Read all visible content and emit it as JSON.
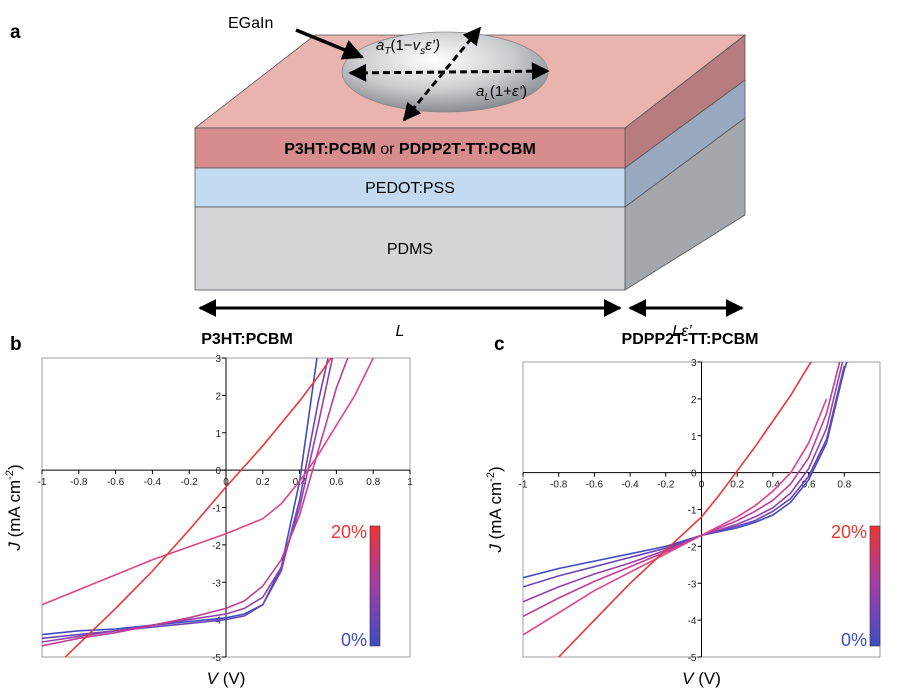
{
  "panel_labels": [
    "a",
    "b",
    "c"
  ],
  "diagram": {
    "droplet_label": "EGaIn",
    "width_label": [
      "a",
      "T",
      "(1−",
      "v",
      "s",
      "ε’)"
    ],
    "length_label": [
      "a",
      "L",
      "(1+",
      "ε’",
      ")"
    ],
    "layers": [
      [
        "P3HT:PCBM",
        " or ",
        "PDPP2T-TT:PCBM"
      ],
      "PEDOT:PSS",
      "PDMS"
    ],
    "length_marks": [
      "L",
      "Lε’"
    ]
  },
  "chart_data": [
    {
      "type": "line",
      "title": "P3HT:PCBM",
      "xlabel": [
        "V",
        " (V)"
      ],
      "ylabel": [
        "J",
        " (mA cm",
        "-2",
        ")"
      ],
      "x": [
        -1,
        -0.8,
        -0.6,
        -0.4,
        -0.2,
        0,
        0.1,
        0.2,
        0.3,
        0.4,
        0.5,
        0.6,
        0.7,
        0.8
      ],
      "xlim": [
        -1,
        1
      ],
      "xticks": [
        -1,
        -0.8,
        -0.6,
        -0.4,
        -0.2,
        0,
        0.2,
        0.4,
        0.6,
        0.8,
        1
      ],
      "ylim": [
        -5,
        3
      ],
      "yticks": [
        -5,
        -4,
        -3,
        -2,
        -1,
        0,
        1,
        2,
        3
      ],
      "series": [
        {
          "color": "#3d4cc0",
          "values": [
            -4.4,
            -4.3,
            -4.25,
            -4.15,
            -4.05,
            -3.95,
            -3.85,
            -3.6,
            -2.6,
            -0.3,
            3.2,
            null,
            null,
            null
          ]
        },
        {
          "color": "#6a44b8",
          "values": [
            -4.5,
            -4.4,
            -4.3,
            -4.2,
            -4.1,
            -4.0,
            -3.9,
            -3.6,
            -2.7,
            -0.8,
            1.8,
            4.0,
            null,
            null
          ]
        },
        {
          "color": "#9640aa",
          "values": [
            -4.6,
            -4.45,
            -4.3,
            -4.15,
            -4.0,
            -3.85,
            -3.7,
            -3.4,
            -2.6,
            -1.0,
            1.2,
            3.5,
            null,
            null
          ]
        },
        {
          "color": "#c23d98",
          "values": [
            -4.7,
            -4.5,
            -4.35,
            -4.15,
            -3.95,
            -3.7,
            -3.5,
            -3.1,
            -2.4,
            -1.2,
            0.5,
            2.2,
            3.5,
            null
          ]
        },
        {
          "color": "#e0448a",
          "values": [
            -3.6,
            -3.2,
            -2.8,
            -2.4,
            -2.05,
            -1.7,
            -1.5,
            -1.3,
            -0.9,
            -0.3,
            0.4,
            1.2,
            2.0,
            3.0
          ]
        },
        {
          "color": "#ee3434",
          "values": [
            -5.6,
            -4.65,
            -3.7,
            -2.7,
            -1.6,
            -0.45,
            0.1,
            0.65,
            1.25,
            1.85,
            2.5,
            3.2,
            null,
            null
          ]
        }
      ],
      "colorbar": {
        "labels": [
          "0%",
          "20%"
        ],
        "colors": [
          "#3d4cc0",
          "#ee3434"
        ]
      }
    },
    {
      "type": "line",
      "title": "PDPP2T-TT:PCBM",
      "xlabel": [
        "V",
        " (V)"
      ],
      "ylabel": [
        "J",
        " (mA cm",
        "-2",
        ")"
      ],
      "x": [
        -1,
        -0.8,
        -0.6,
        -0.4,
        -0.2,
        0,
        0.1,
        0.2,
        0.3,
        0.4,
        0.5,
        0.6,
        0.7,
        0.8,
        0.85
      ],
      "xlim": [
        -1,
        1
      ],
      "xticks": [
        -1,
        -0.8,
        -0.6,
        -0.4,
        -0.2,
        0,
        0.2,
        0.4,
        0.6,
        0.8
      ],
      "ylim": [
        -5,
        3
      ],
      "yticks": [
        -5,
        -4,
        -3,
        -2,
        -1,
        0,
        1,
        2,
        3
      ],
      "series": [
        {
          "color": "#3d4cc0",
          "values": [
            -2.85,
            -2.6,
            -2.4,
            -2.2,
            -2.0,
            -1.7,
            -1.6,
            -1.5,
            -1.35,
            -1.15,
            -0.8,
            -0.2,
            0.8,
            2.8,
            3.5
          ]
        },
        {
          "color": "#6a44b8",
          "values": [
            -3.1,
            -2.8,
            -2.55,
            -2.3,
            -2.05,
            -1.7,
            -1.58,
            -1.45,
            -1.3,
            -1.05,
            -0.7,
            -0.1,
            0.9,
            2.9,
            null
          ]
        },
        {
          "color": "#9640aa",
          "values": [
            -3.5,
            -3.1,
            -2.75,
            -2.45,
            -2.1,
            -1.7,
            -1.55,
            -1.4,
            -1.2,
            -0.95,
            -0.55,
            0.1,
            1.2,
            3.2,
            null
          ]
        },
        {
          "color": "#c23d98",
          "values": [
            -3.9,
            -3.4,
            -2.95,
            -2.55,
            -2.15,
            -1.7,
            -1.5,
            -1.3,
            -1.05,
            -0.75,
            -0.3,
            0.4,
            1.6,
            3.5,
            null
          ]
        },
        {
          "color": "#e0448a",
          "values": [
            -4.4,
            -3.8,
            -3.2,
            -2.7,
            -2.2,
            -1.7,
            -1.45,
            -1.2,
            -0.9,
            -0.5,
            0.0,
            0.8,
            2.0,
            null,
            null
          ]
        },
        {
          "color": "#ee3434",
          "values": [
            -6.0,
            -5.0,
            -4.0,
            -3.0,
            -2.1,
            -1.2,
            -0.6,
            0.05,
            0.7,
            1.4,
            2.1,
            2.9,
            3.6,
            null,
            null
          ]
        }
      ],
      "colorbar": {
        "labels": [
          "0%",
          "20%"
        ],
        "colors": [
          "#3d4cc0",
          "#ee3434"
        ]
      }
    }
  ]
}
